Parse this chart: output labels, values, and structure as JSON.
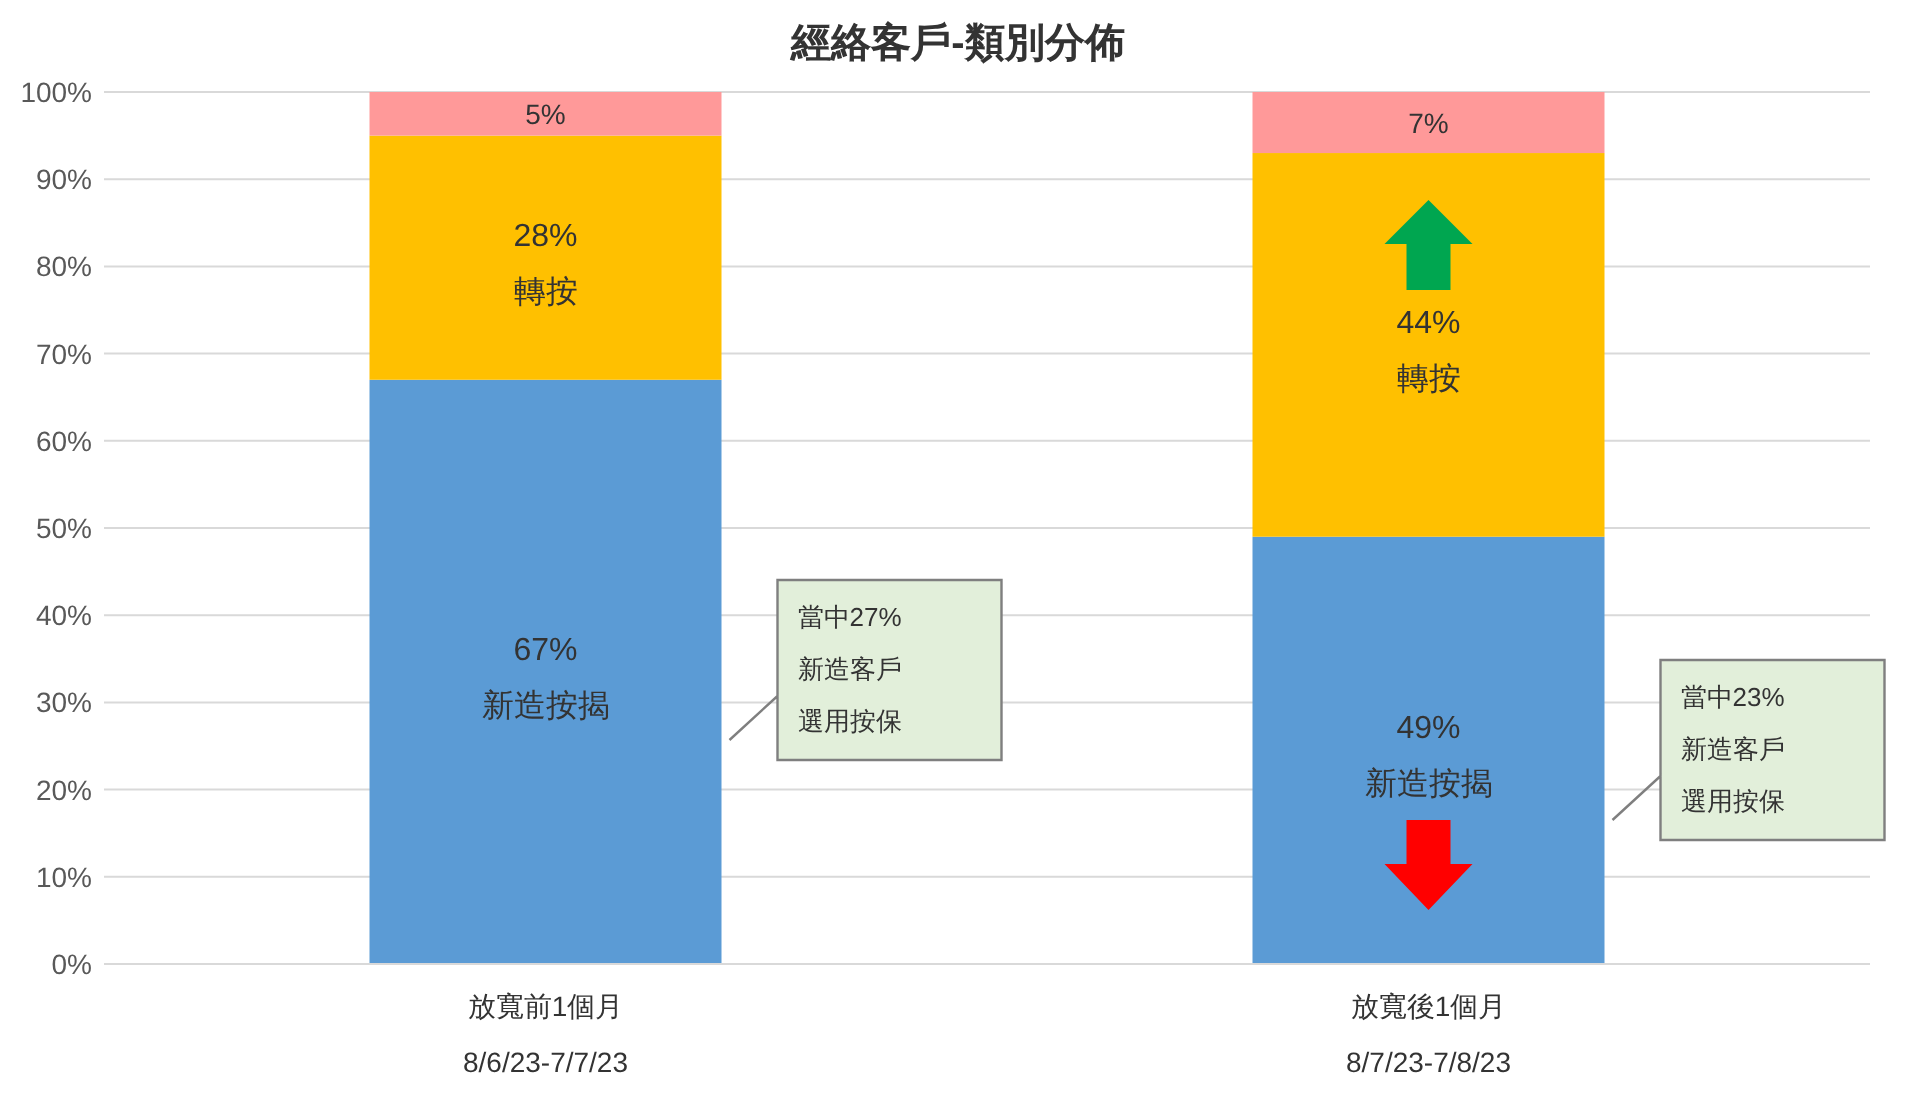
{
  "chart_data": {
    "type": "bar",
    "title": "經絡客戶-類別分佈",
    "stacked": true,
    "categories": [
      "放寬前1個月\n8/6/23-7/7/23",
      "放寬後1個月\n8/7/23-7/8/23"
    ],
    "series": [
      {
        "name": "新造按揭",
        "color": "#5b9bd5",
        "values": [
          67,
          49
        ],
        "value_labels": [
          "67%",
          "49%"
        ]
      },
      {
        "name": "轉按",
        "color": "#ffc000",
        "values": [
          28,
          44
        ],
        "value_labels": [
          "28%",
          "44%"
        ]
      },
      {
        "color": "#ff9999",
        "values": [
          5,
          7
        ],
        "value_labels": [
          "5%",
          "7%"
        ]
      }
    ],
    "ylim": [
      0,
      100
    ],
    "yticks": [
      {
        "value": 0,
        "label": "0%"
      },
      {
        "value": 10,
        "label": "10%"
      },
      {
        "value": 20,
        "label": "20%"
      },
      {
        "value": 30,
        "label": "30%"
      },
      {
        "value": 40,
        "label": "40%"
      },
      {
        "value": 50,
        "label": "50%"
      },
      {
        "value": 60,
        "label": "60%"
      },
      {
        "value": 70,
        "label": "70%"
      },
      {
        "value": 80,
        "label": "80%"
      },
      {
        "value": 90,
        "label": "90%"
      },
      {
        "value": 100,
        "label": "100%"
      }
    ],
    "grid": "y",
    "annotations": [
      "當中27%新造客戶選用按保",
      "當中23%新造客戶選用按保"
    ]
  }
}
